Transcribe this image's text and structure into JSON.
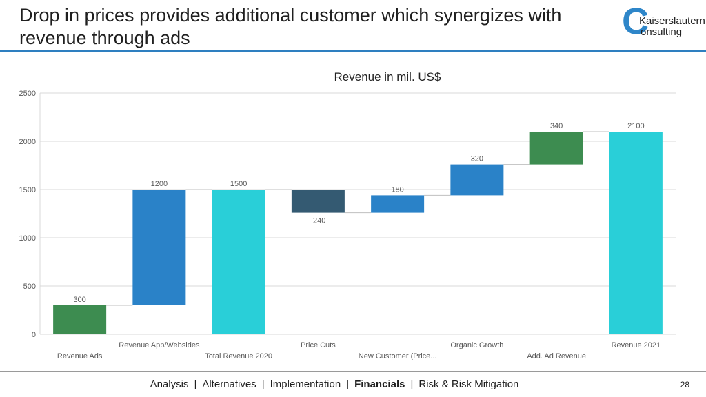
{
  "slide": {
    "title": "Drop in prices provides additional customer which synergizes with revenue through ads",
    "page_number": "28"
  },
  "logo": {
    "letter": "C",
    "line1": "Kaiserslautern",
    "line2": "onsulting"
  },
  "nav": {
    "items": [
      "Analysis",
      "Alternatives",
      "Implementation",
      "Financials",
      "Risk & Risk Mitigation"
    ],
    "active": "Financials",
    "separator": "|"
  },
  "colors": {
    "accent": "#2e7fc0",
    "green": "#3d8c50",
    "blue": "#2a82c8",
    "cyan": "#29cfd8",
    "dark": "#345a72"
  },
  "chart_data": {
    "type": "waterfall",
    "title": "Revenue in mil. US$",
    "ylim": [
      0,
      2500
    ],
    "yticks": [
      0,
      500,
      1000,
      1500,
      2000,
      2500
    ],
    "grid": true,
    "legend": "none",
    "categories": [
      "Revenue Ads",
      "Revenue App/Websides",
      "Total Revenue 2020",
      "Price Cuts",
      "New  Customer (Price...",
      "Organic Growth",
      "Add. Ad Revenue",
      "Revenue 2021"
    ],
    "values": [
      300,
      1200,
      1500,
      -240,
      180,
      320,
      340,
      2100
    ],
    "kinds": [
      "increase",
      "increase",
      "total",
      "decrease",
      "increase",
      "increase",
      "increase",
      "total"
    ],
    "bar_colors": [
      "#3d8c50",
      "#2a82c8",
      "#29cfd8",
      "#345a72",
      "#2a82c8",
      "#2a82c8",
      "#3d8c50",
      "#29cfd8"
    ],
    "data_labels": [
      "300",
      "1200",
      "1500",
      "-240",
      "180",
      "320",
      "340",
      "2100"
    ]
  }
}
